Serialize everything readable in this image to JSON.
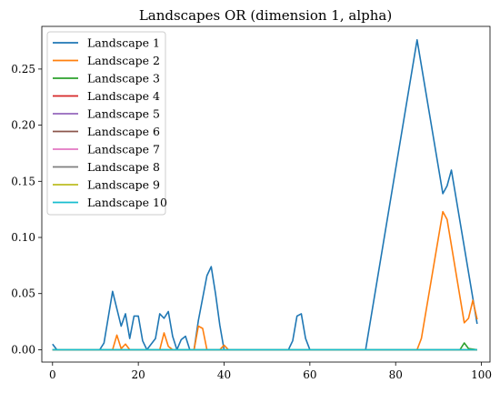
{
  "chart_data": {
    "type": "line",
    "title": "Landscapes OR (dimension 1, alpha)",
    "xlabel": "",
    "ylabel": "",
    "xlim": [
      -2.5,
      102
    ],
    "ylim": [
      -0.011,
      0.288
    ],
    "xticks": [
      0,
      20,
      40,
      60,
      80,
      100
    ],
    "xtick_labels": [
      "0",
      "20",
      "40",
      "60",
      "80",
      "100"
    ],
    "yticks": [
      0.0,
      0.05,
      0.1,
      0.15,
      0.2,
      0.25
    ],
    "ytick_labels": [
      "0.00",
      "0.05",
      "0.10",
      "0.15",
      "0.20",
      "0.25"
    ],
    "grid": false,
    "legend_position": "top-left",
    "series": [
      {
        "name": "Landscape 1",
        "color": "#1f77b4",
        "points": [
          [
            0,
            0.005
          ],
          [
            1,
            0
          ],
          [
            11,
            0
          ],
          [
            12,
            0.006
          ],
          [
            14,
            0.052
          ],
          [
            16,
            0.021
          ],
          [
            17,
            0.032
          ],
          [
            18,
            0.01
          ],
          [
            19,
            0.03
          ],
          [
            20,
            0.03
          ],
          [
            21,
            0.008
          ],
          [
            22,
            0
          ],
          [
            24,
            0.01
          ],
          [
            25,
            0.032
          ],
          [
            26,
            0.028
          ],
          [
            27,
            0.034
          ],
          [
            28,
            0.012
          ],
          [
            29,
            0
          ],
          [
            30,
            0.009
          ],
          [
            31,
            0.012
          ],
          [
            32,
            0
          ],
          [
            33,
            0
          ],
          [
            34,
            0.026
          ],
          [
            36,
            0.066
          ],
          [
            37,
            0.074
          ],
          [
            38,
            0.05
          ],
          [
            39,
            0.022
          ],
          [
            40,
            0
          ],
          [
            55,
            0
          ],
          [
            56,
            0.008
          ],
          [
            57,
            0.03
          ],
          [
            58,
            0.032
          ],
          [
            59,
            0.01
          ],
          [
            60,
            0
          ],
          [
            73,
            0
          ],
          [
            85,
            0.276
          ],
          [
            91,
            0.139
          ],
          [
            92,
            0.146
          ],
          [
            93,
            0.16
          ],
          [
            99,
            0.023
          ]
        ]
      },
      {
        "name": "Landscape 2",
        "color": "#ff7f0e",
        "points": [
          [
            0,
            0
          ],
          [
            14,
            0
          ],
          [
            15,
            0.013
          ],
          [
            16,
            0.001
          ],
          [
            17,
            0.005
          ],
          [
            18,
            0
          ],
          [
            25,
            0
          ],
          [
            26,
            0.015
          ],
          [
            27,
            0.003
          ],
          [
            28,
            0
          ],
          [
            33,
            0
          ],
          [
            34,
            0.021
          ],
          [
            35,
            0.019
          ],
          [
            36,
            0
          ],
          [
            39,
            0
          ],
          [
            40,
            0.004
          ],
          [
            41,
            0
          ],
          [
            85,
            0
          ],
          [
            86,
            0.01
          ],
          [
            91,
            0.123
          ],
          [
            92,
            0.116
          ],
          [
            96,
            0.024
          ],
          [
            97,
            0.028
          ],
          [
            98,
            0.044
          ],
          [
            99,
            0.027
          ]
        ]
      },
      {
        "name": "Landscape 3",
        "color": "#2ca02c",
        "points": [
          [
            0,
            0
          ],
          [
            95,
            0
          ],
          [
            96,
            0.006
          ],
          [
            97,
            0.001
          ],
          [
            99,
            0
          ]
        ]
      },
      {
        "name": "Landscape 4",
        "color": "#d62728",
        "points": [
          [
            0,
            0
          ],
          [
            99,
            0
          ]
        ]
      },
      {
        "name": "Landscape 5",
        "color": "#9467bd",
        "points": [
          [
            0,
            0
          ],
          [
            99,
            0
          ]
        ]
      },
      {
        "name": "Landscape 6",
        "color": "#8c564b",
        "points": [
          [
            0,
            0
          ],
          [
            99,
            0
          ]
        ]
      },
      {
        "name": "Landscape 7",
        "color": "#e377c2",
        "points": [
          [
            0,
            0
          ],
          [
            99,
            0
          ]
        ]
      },
      {
        "name": "Landscape 8",
        "color": "#7f7f7f",
        "points": [
          [
            0,
            0
          ],
          [
            99,
            0
          ]
        ]
      },
      {
        "name": "Landscape 9",
        "color": "#bcbd22",
        "points": [
          [
            0,
            0
          ],
          [
            99,
            0
          ]
        ]
      },
      {
        "name": "Landscape 10",
        "color": "#17becf",
        "points": [
          [
            0,
            0
          ],
          [
            99,
            0
          ]
        ]
      }
    ]
  }
}
